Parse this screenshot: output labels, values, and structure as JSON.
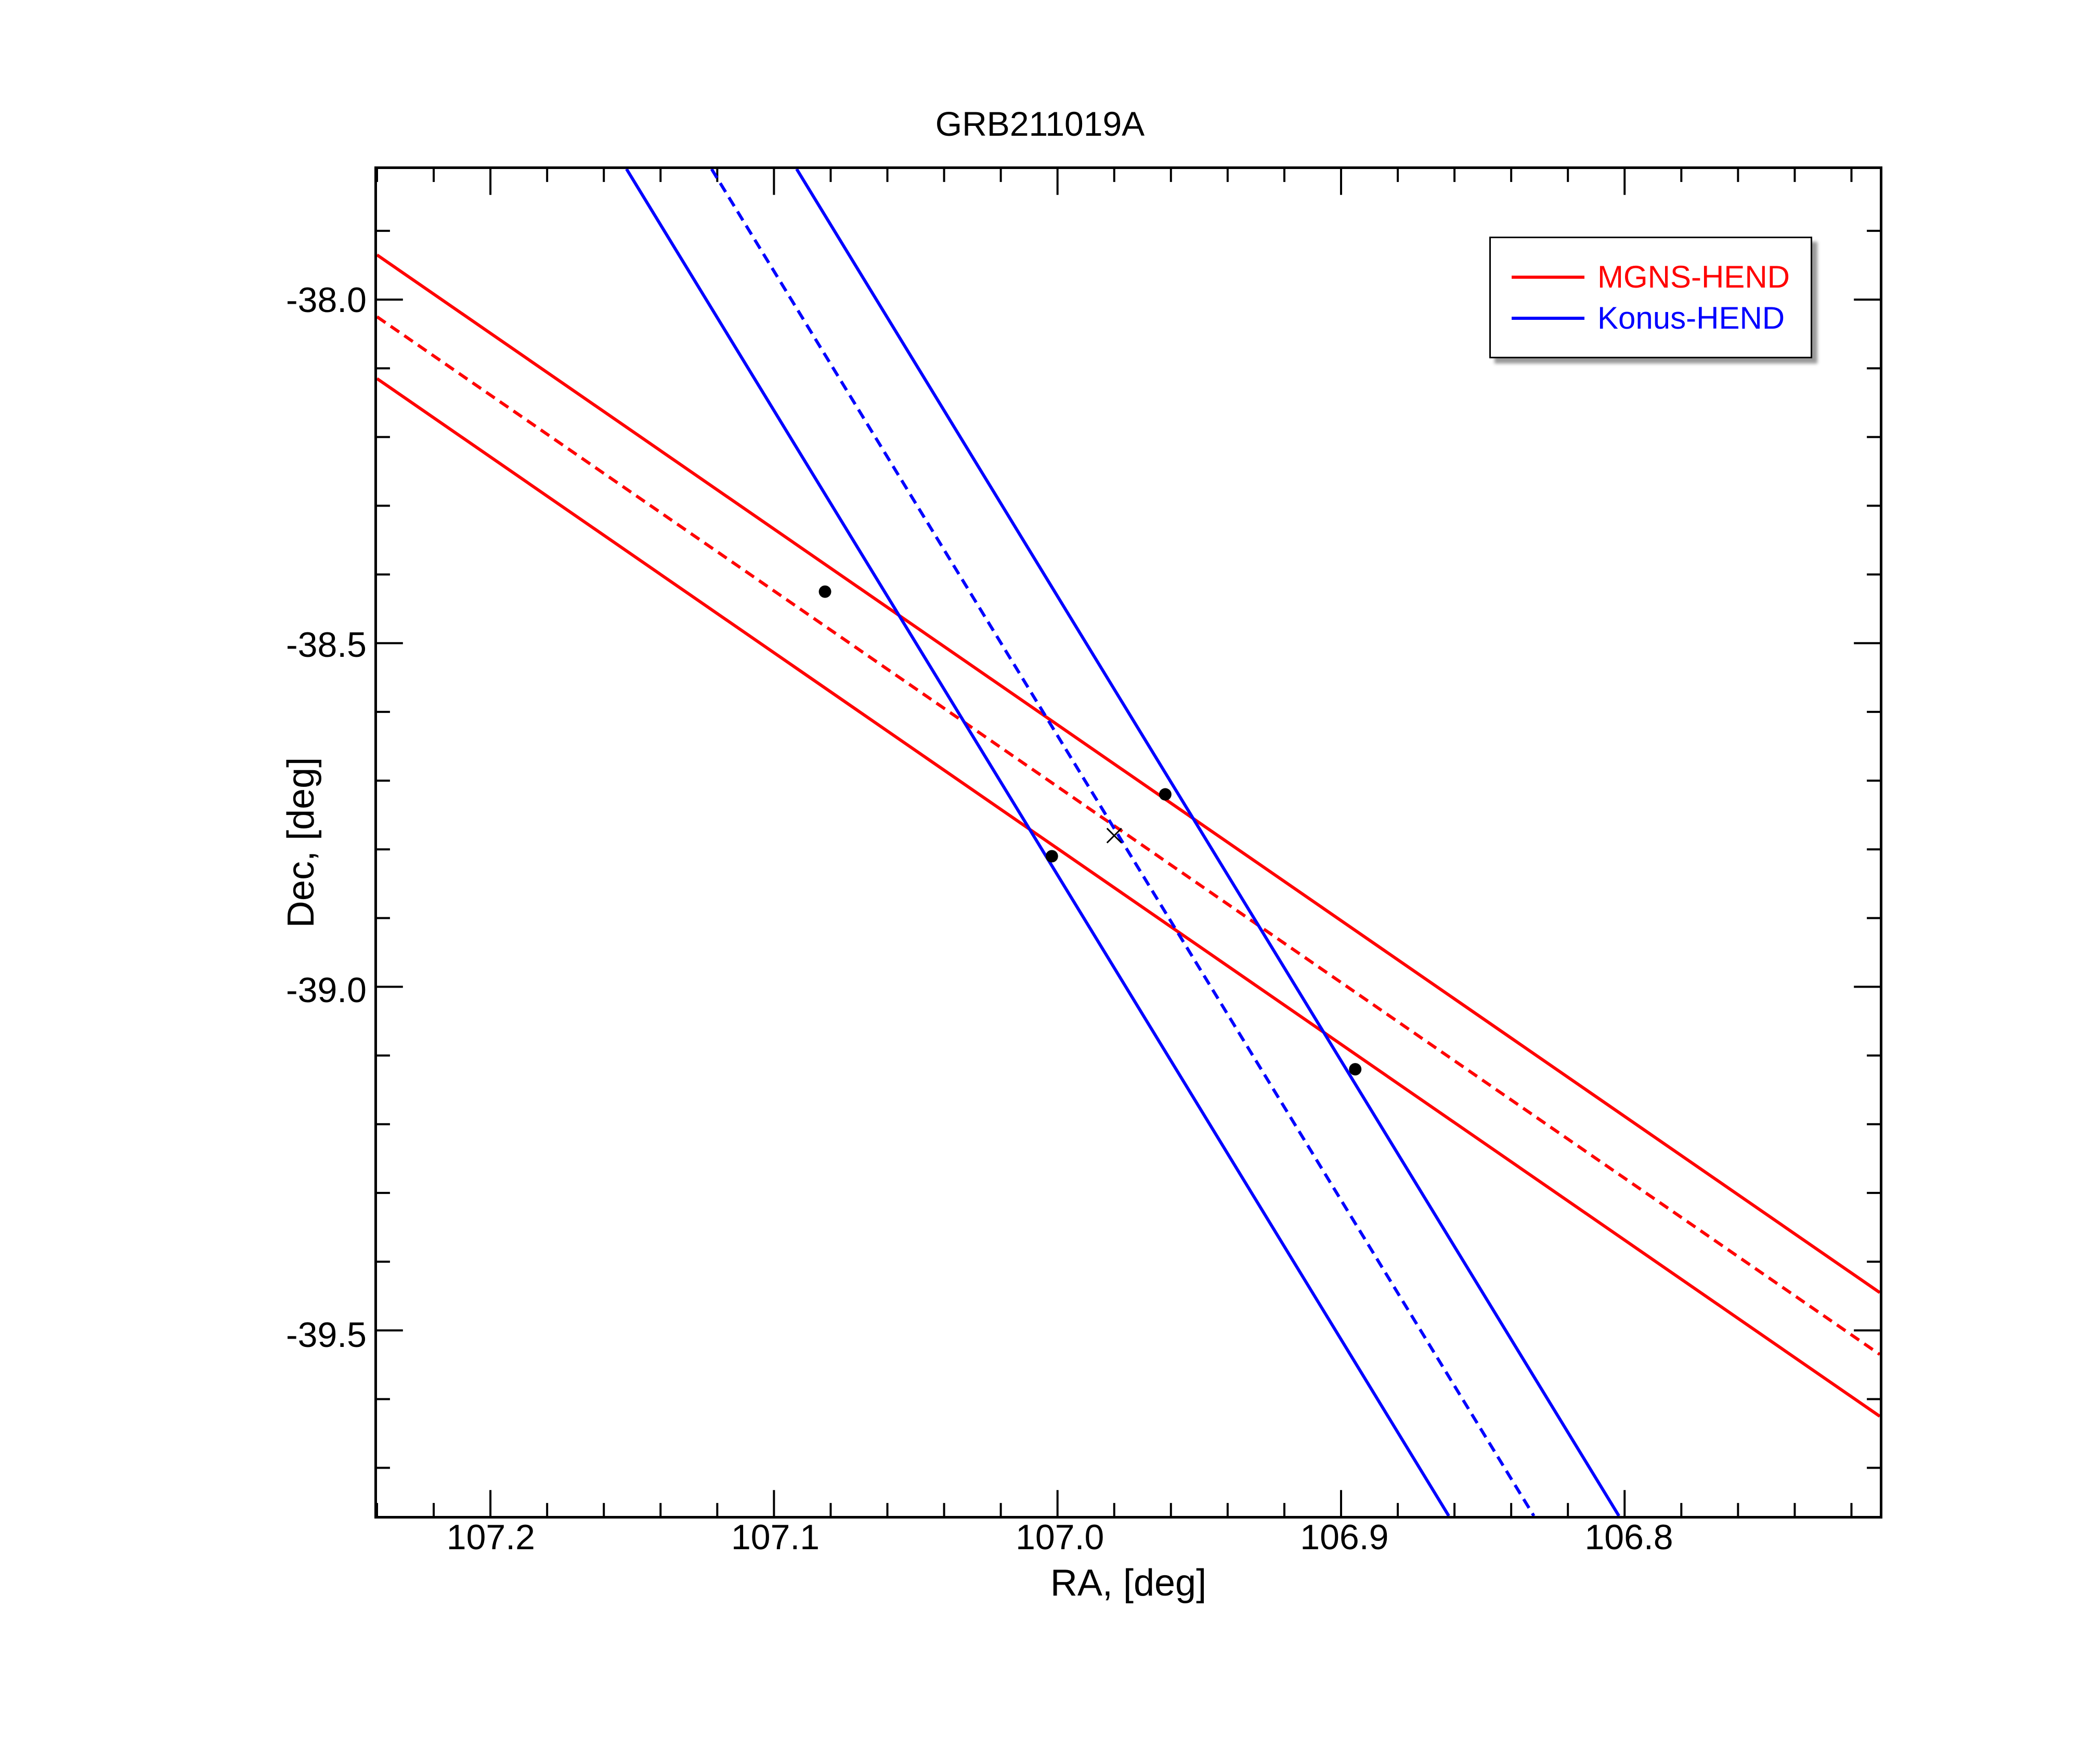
{
  "chart": {
    "type": "line",
    "title": "GRB211019A",
    "title_fontsize": 66,
    "background_color": "#ffffff",
    "border_color": "#000000",
    "border_width": 5,
    "xlabel": "RA, [deg]",
    "ylabel": "Dec, [deg]",
    "label_fontsize": 72,
    "tick_label_fontsize": 68,
    "xlim": [
      107.24,
      106.71
    ],
    "ylim": [
      -39.77,
      -37.81
    ],
    "x_reversed": true,
    "xtick_major": [
      107.2,
      107.1,
      107.0,
      106.9,
      106.8
    ],
    "xtick_minor_step": 0.02,
    "ytick_major": [
      -38.0,
      -38.5,
      -39.0,
      -39.5
    ],
    "ytick_minor_step": 0.1,
    "tick_major_length": 50,
    "tick_minor_length": 25,
    "tick_width": 4,
    "series": [
      {
        "name": "MGNS-HEND",
        "color": "#ff0000",
        "line_width": 6,
        "lines": [
          {
            "style": "solid",
            "points": [
              [
                107.24,
                -37.935
              ],
              [
                106.71,
                -39.445
              ]
            ]
          },
          {
            "style": "dashed",
            "dash_pattern": "20 12",
            "points": [
              [
                107.24,
                -38.025
              ],
              [
                106.71,
                -39.535
              ]
            ]
          },
          {
            "style": "solid",
            "points": [
              [
                107.24,
                -38.115
              ],
              [
                106.71,
                -39.625
              ]
            ]
          }
        ]
      },
      {
        "name": "Konus-HEND",
        "color": "#0000ff",
        "line_width": 6,
        "lines": [
          {
            "style": "solid",
            "points": [
              [
                107.152,
                -37.81
              ],
              [
                106.862,
                -39.77
              ]
            ]
          },
          {
            "style": "dashed",
            "dash_pattern": "20 12",
            "points": [
              [
                107.122,
                -37.81
              ],
              [
                106.832,
                -39.77
              ]
            ]
          },
          {
            "style": "solid",
            "points": [
              [
                107.092,
                -37.81
              ],
              [
                106.802,
                -39.77
              ]
            ]
          }
        ]
      }
    ],
    "markers": [
      {
        "type": "dot",
        "x": 107.082,
        "y": -38.425,
        "color": "#000000",
        "size": 12
      },
      {
        "type": "dot",
        "x": 107.002,
        "y": -38.81,
        "color": "#000000",
        "size": 12
      },
      {
        "type": "dot",
        "x": 106.962,
        "y": -38.72,
        "color": "#000000",
        "size": 12
      },
      {
        "type": "dot",
        "x": 106.895,
        "y": -39.12,
        "color": "#000000",
        "size": 12
      },
      {
        "type": "cross",
        "x": 106.98,
        "y": -38.78,
        "color": "#000000",
        "size": 14,
        "line_width": 3
      }
    ],
    "legend": {
      "position": "top-right",
      "border_color": "#000000",
      "border_width": 3,
      "background_color": "#ffffff",
      "shadow": true,
      "fontsize": 60,
      "items": [
        {
          "label": "MGNS-HEND",
          "color": "#ff0000"
        },
        {
          "label": "Konus-HEND",
          "color": "#0000ff"
        }
      ]
    }
  }
}
